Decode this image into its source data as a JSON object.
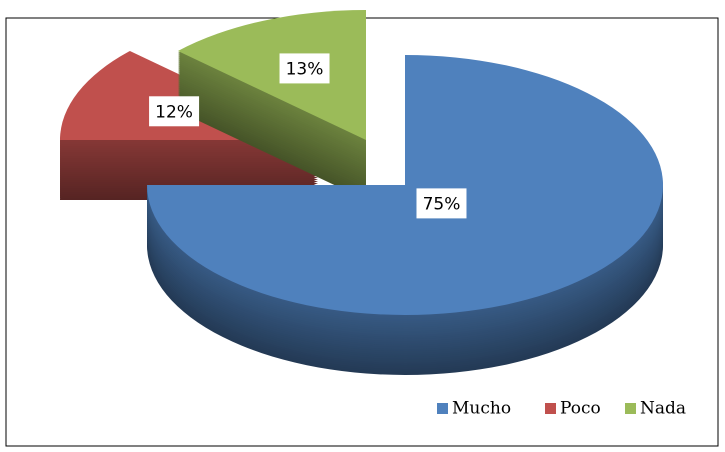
{
  "chart_data": {
    "type": "pie3d",
    "categories": [
      "Mucho",
      "Poco",
      "Nada"
    ],
    "values": [
      75,
      12,
      13
    ],
    "value_labels": [
      "75%",
      "12%",
      "13%"
    ],
    "series": [
      {
        "name": "Mucho",
        "color": "#4f81bd"
      },
      {
        "name": "Poco",
        "color": "#c0504d"
      },
      {
        "name": "Nada",
        "color": "#9bbb59"
      }
    ],
    "legend": "bottom-right"
  }
}
